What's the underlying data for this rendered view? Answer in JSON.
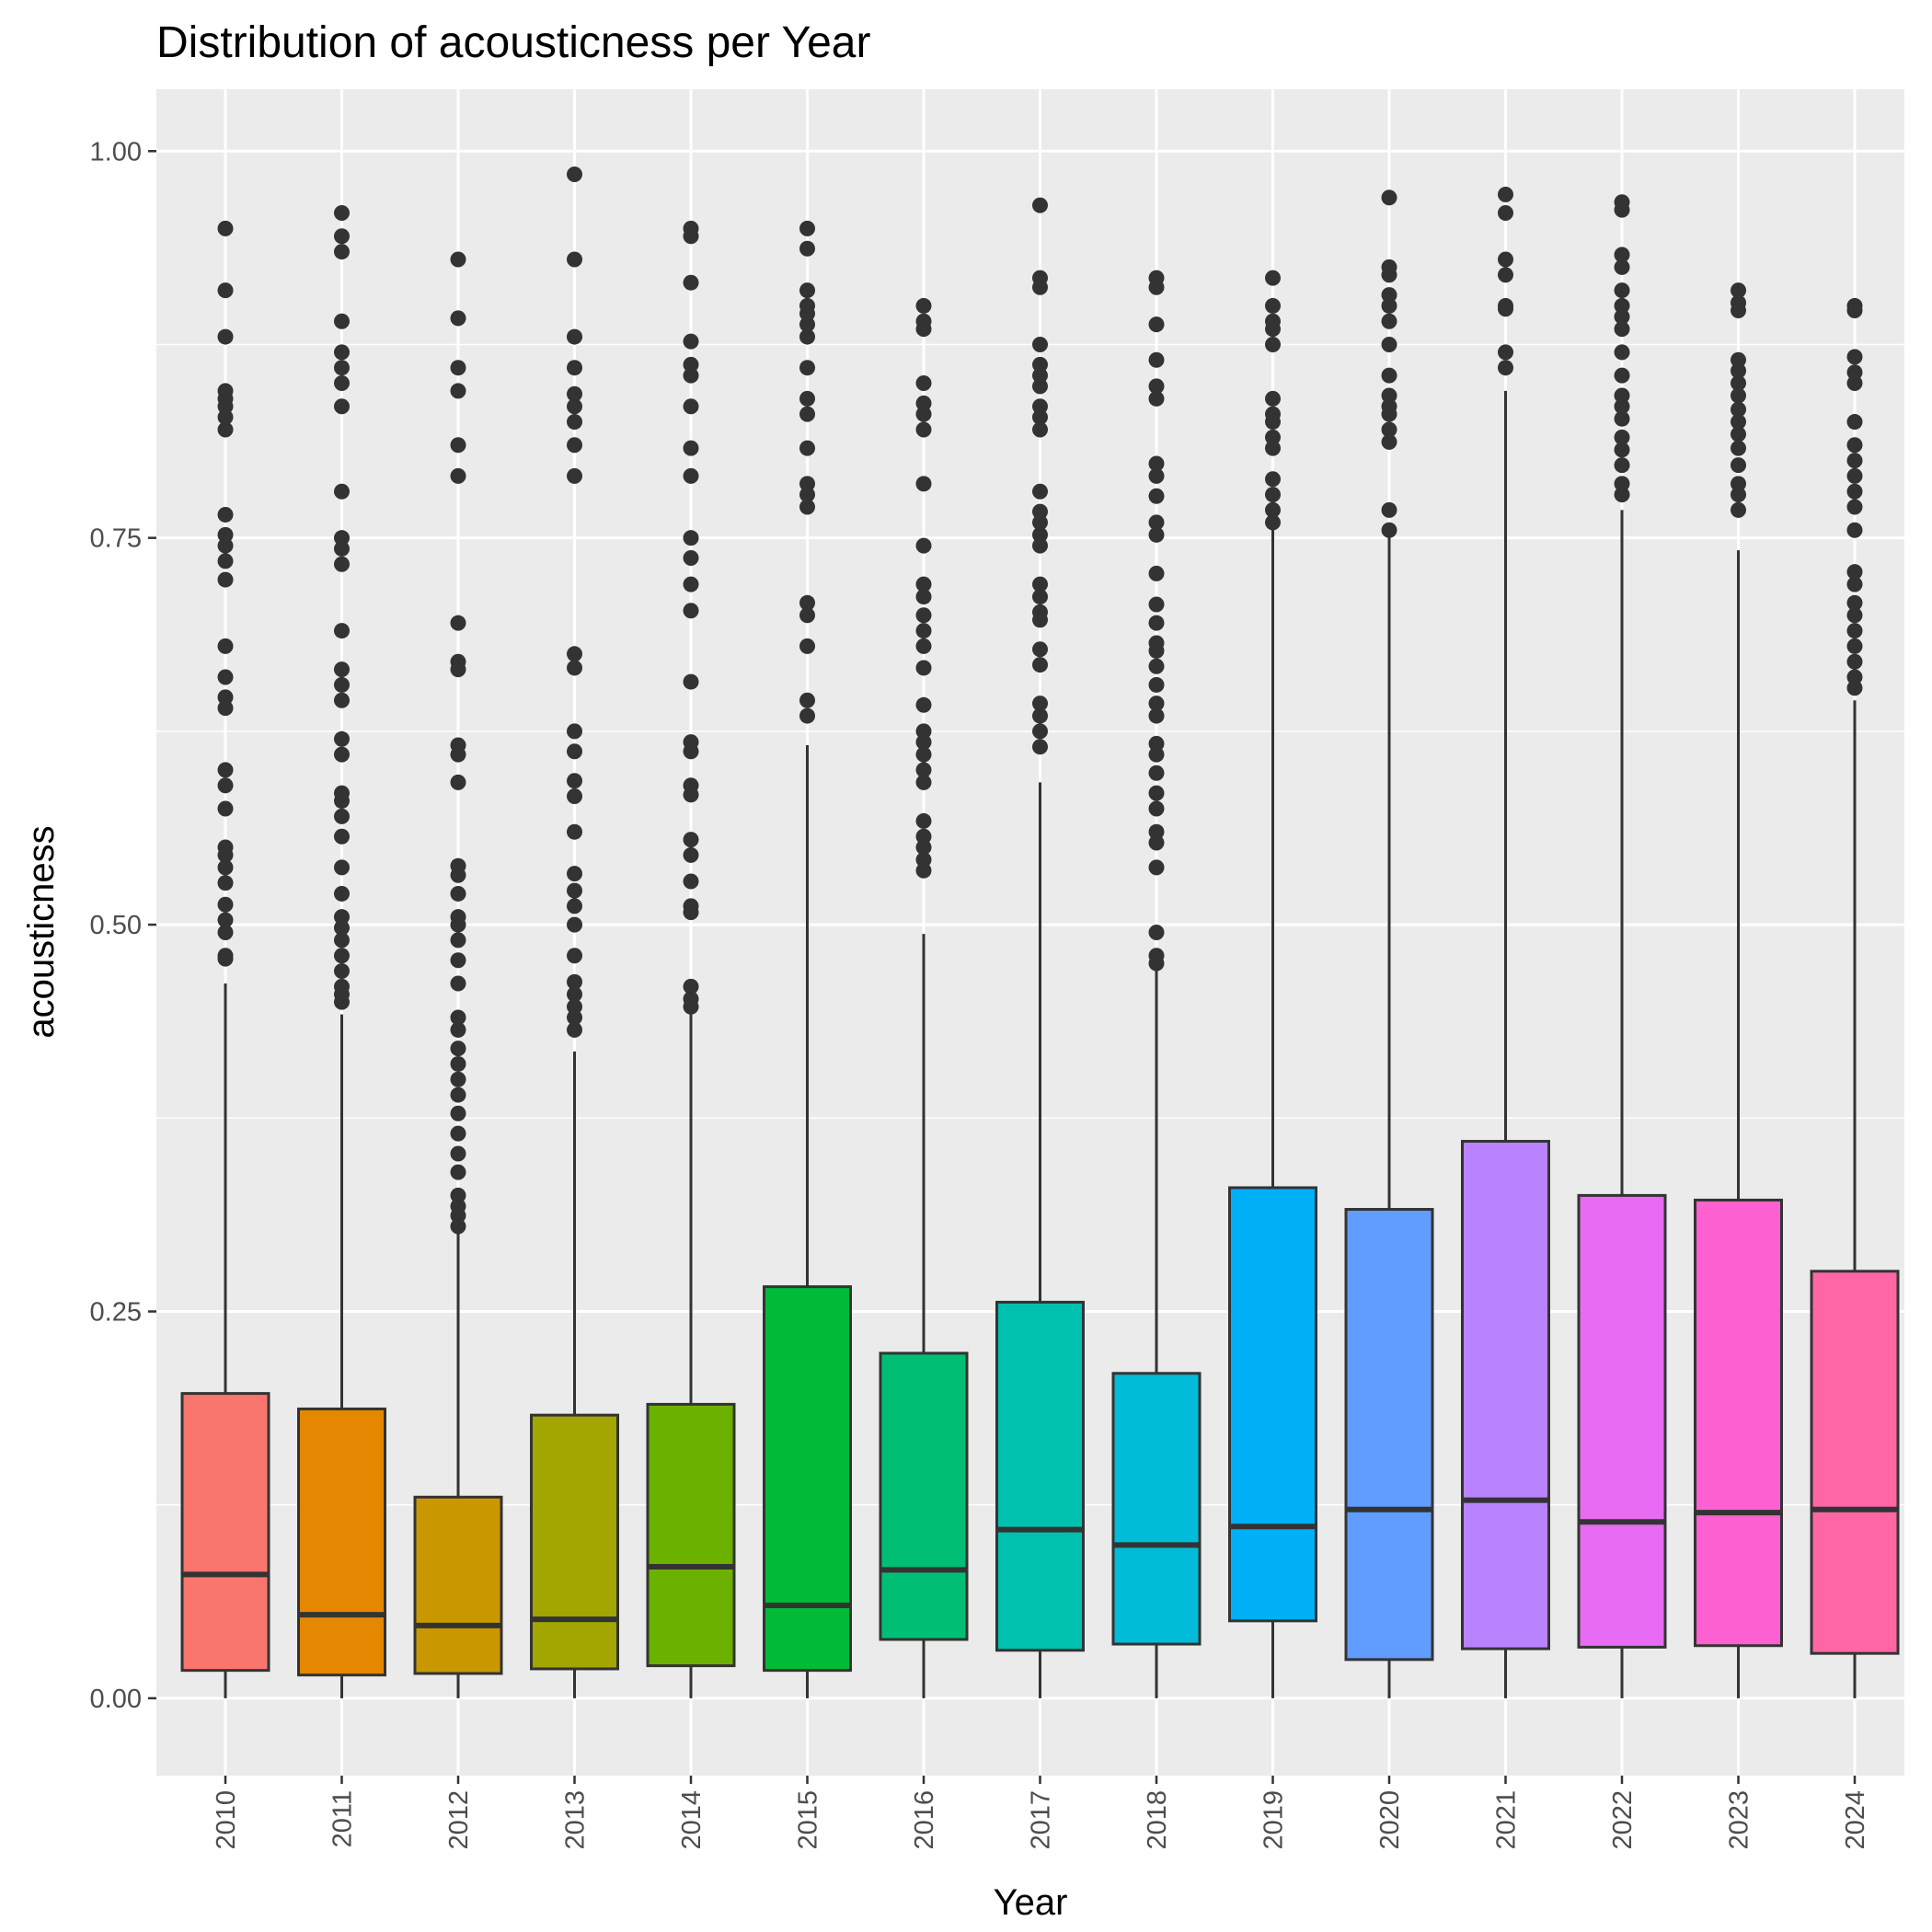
{
  "chart_data": {
    "type": "boxplot",
    "title": "Distribution of acousticness per Year",
    "xlabel": "Year",
    "ylabel": "acousticness",
    "ylim": [
      -0.05,
      1.04
    ],
    "y_ticks": [
      0.0,
      0.25,
      0.5,
      0.75,
      1.0
    ],
    "y_tick_labels": [
      "0.00",
      "0.25",
      "0.50",
      "0.75",
      "1.00"
    ],
    "grid": true,
    "legend": "none",
    "categories": [
      "2010",
      "2011",
      "2012",
      "2013",
      "2014",
      "2015",
      "2016",
      "2017",
      "2018",
      "2019",
      "2020",
      "2021",
      "2022",
      "2023",
      "2024"
    ],
    "boxes": [
      {
        "year": "2010",
        "color": "#F8766D",
        "lower_whisker": 0.0,
        "q1": 0.018,
        "median": 0.08,
        "q3": 0.197,
        "upper_whisker": 0.462,
        "outliers": [
          0.478,
          0.48,
          0.495,
          0.503,
          0.513,
          0.527,
          0.537,
          0.545,
          0.55,
          0.575,
          0.59,
          0.6,
          0.64,
          0.647,
          0.66,
          0.68,
          0.723,
          0.735,
          0.745,
          0.752,
          0.765,
          0.82,
          0.828,
          0.835,
          0.84,
          0.845,
          0.88,
          0.91,
          0.95
        ]
      },
      {
        "year": "2011",
        "color": "#E58700",
        "lower_whisker": 0.0,
        "q1": 0.015,
        "median": 0.054,
        "q3": 0.187,
        "upper_whisker": 0.442,
        "outliers": [
          0.45,
          0.455,
          0.46,
          0.47,
          0.48,
          0.49,
          0.498,
          0.505,
          0.52,
          0.537,
          0.557,
          0.57,
          0.58,
          0.585,
          0.61,
          0.62,
          0.645,
          0.655,
          0.665,
          0.69,
          0.733,
          0.743,
          0.75,
          0.78,
          0.835,
          0.85,
          0.86,
          0.87,
          0.89,
          0.935,
          0.945,
          0.96
        ]
      },
      {
        "year": "2012",
        "color": "#C99800",
        "lower_whisker": 0.0,
        "q1": 0.016,
        "median": 0.047,
        "q3": 0.13,
        "upper_whisker": 0.301,
        "outliers": [
          0.305,
          0.312,
          0.318,
          0.325,
          0.34,
          0.352,
          0.365,
          0.378,
          0.39,
          0.4,
          0.41,
          0.42,
          0.432,
          0.44,
          0.462,
          0.477,
          0.49,
          0.5,
          0.505,
          0.52,
          0.532,
          0.538,
          0.592,
          0.61,
          0.616,
          0.665,
          0.67,
          0.695,
          0.79,
          0.81,
          0.845,
          0.86,
          0.892,
          0.93
        ]
      },
      {
        "year": "2013",
        "color": "#A3A500",
        "lower_whisker": 0.0,
        "q1": 0.019,
        "median": 0.051,
        "q3": 0.183,
        "upper_whisker": 0.418,
        "outliers": [
          0.432,
          0.44,
          0.447,
          0.455,
          0.463,
          0.48,
          0.5,
          0.512,
          0.522,
          0.533,
          0.56,
          0.583,
          0.593,
          0.612,
          0.625,
          0.666,
          0.675,
          0.79,
          0.81,
          0.825,
          0.835,
          0.843,
          0.86,
          0.88,
          0.93,
          0.985
        ]
      },
      {
        "year": "2014",
        "color": "#6BB100",
        "lower_whisker": 0.0,
        "q1": 0.021,
        "median": 0.085,
        "q3": 0.19,
        "upper_whisker": 0.444,
        "outliers": [
          0.447,
          0.452,
          0.46,
          0.508,
          0.512,
          0.528,
          0.545,
          0.555,
          0.584,
          0.59,
          0.612,
          0.618,
          0.657,
          0.703,
          0.72,
          0.737,
          0.75,
          0.79,
          0.808,
          0.835,
          0.855,
          0.862,
          0.877,
          0.915,
          0.945,
          0.95
        ]
      },
      {
        "year": "2015",
        "color": "#00BA38",
        "lower_whisker": 0.0,
        "q1": 0.018,
        "median": 0.06,
        "q3": 0.266,
        "upper_whisker": 0.616,
        "outliers": [
          0.635,
          0.645,
          0.68,
          0.7,
          0.708,
          0.77,
          0.778,
          0.785,
          0.808,
          0.83,
          0.84,
          0.86,
          0.88,
          0.888,
          0.895,
          0.9,
          0.91,
          0.937,
          0.95
        ]
      },
      {
        "year": "2016",
        "color": "#00BF74",
        "lower_whisker": 0.0,
        "q1": 0.038,
        "median": 0.083,
        "q3": 0.223,
        "upper_whisker": 0.494,
        "outliers": [
          0.535,
          0.542,
          0.55,
          0.557,
          0.567,
          0.592,
          0.6,
          0.61,
          0.618,
          0.625,
          0.642,
          0.666,
          0.68,
          0.69,
          0.7,
          0.712,
          0.72,
          0.745,
          0.785,
          0.82,
          0.83,
          0.837,
          0.85,
          0.885,
          0.89,
          0.9
        ]
      },
      {
        "year": "2017",
        "color": "#00C0AF",
        "lower_whisker": 0.0,
        "q1": 0.031,
        "median": 0.109,
        "q3": 0.256,
        "upper_whisker": 0.592,
        "outliers": [
          0.615,
          0.625,
          0.635,
          0.643,
          0.668,
          0.678,
          0.697,
          0.702,
          0.712,
          0.72,
          0.745,
          0.752,
          0.76,
          0.767,
          0.78,
          0.82,
          0.828,
          0.835,
          0.848,
          0.855,
          0.862,
          0.875,
          0.912,
          0.918,
          0.965
        ]
      },
      {
        "year": "2018",
        "color": "#00BCD8",
        "lower_whisker": 0.0,
        "q1": 0.035,
        "median": 0.099,
        "q3": 0.21,
        "upper_whisker": 0.47,
        "outliers": [
          0.475,
          0.48,
          0.495,
          0.537,
          0.553,
          0.56,
          0.575,
          0.585,
          0.598,
          0.61,
          0.617,
          0.635,
          0.643,
          0.655,
          0.667,
          0.677,
          0.682,
          0.695,
          0.707,
          0.727,
          0.752,
          0.76,
          0.777,
          0.79,
          0.798,
          0.84,
          0.848,
          0.865,
          0.888,
          0.912,
          0.918
        ]
      },
      {
        "year": "2019",
        "color": "#00B0F6",
        "lower_whisker": 0.0,
        "q1": 0.05,
        "median": 0.111,
        "q3": 0.33,
        "upper_whisker": 0.76,
        "outliers": [
          0.76,
          0.768,
          0.778,
          0.788,
          0.808,
          0.815,
          0.825,
          0.83,
          0.84,
          0.875,
          0.885,
          0.89,
          0.9,
          0.918
        ]
      },
      {
        "year": "2020",
        "color": "#619CFF",
        "lower_whisker": 0.0,
        "q1": 0.025,
        "median": 0.122,
        "q3": 0.316,
        "upper_whisker": 0.755,
        "outliers": [
          0.755,
          0.768,
          0.812,
          0.82,
          0.83,
          0.835,
          0.842,
          0.855,
          0.875,
          0.89,
          0.9,
          0.907,
          0.92,
          0.925,
          0.97
        ]
      },
      {
        "year": "2021",
        "color": "#B983FF",
        "lower_whisker": 0.0,
        "q1": 0.032,
        "median": 0.128,
        "q3": 0.36,
        "upper_whisker": 0.845,
        "outliers": [
          0.86,
          0.87,
          0.898,
          0.9,
          0.92,
          0.93,
          0.96,
          0.972
        ]
      },
      {
        "year": "2022",
        "color": "#E76BF3",
        "lower_whisker": 0.0,
        "q1": 0.033,
        "median": 0.114,
        "q3": 0.325,
        "upper_whisker": 0.768,
        "outliers": [
          0.778,
          0.785,
          0.797,
          0.807,
          0.815,
          0.827,
          0.835,
          0.842,
          0.855,
          0.87,
          0.885,
          0.893,
          0.9,
          0.91,
          0.925,
          0.933,
          0.962,
          0.967
        ]
      },
      {
        "year": "2023",
        "color": "#FD61D1",
        "lower_whisker": 0.0,
        "q1": 0.034,
        "median": 0.12,
        "q3": 0.322,
        "upper_whisker": 0.742,
        "outliers": [
          0.768,
          0.778,
          0.785,
          0.797,
          0.808,
          0.817,
          0.825,
          0.833,
          0.842,
          0.85,
          0.858,
          0.865,
          0.897,
          0.902,
          0.91
        ]
      },
      {
        "year": "2024",
        "color": "#FF67A4",
        "lower_whisker": 0.0,
        "q1": 0.029,
        "median": 0.122,
        "q3": 0.276,
        "upper_whisker": 0.645,
        "outliers": [
          0.653,
          0.66,
          0.67,
          0.68,
          0.69,
          0.7,
          0.708,
          0.72,
          0.728,
          0.755,
          0.77,
          0.78,
          0.79,
          0.8,
          0.81,
          0.825,
          0.85,
          0.857,
          0.867,
          0.897,
          0.9
        ]
      }
    ]
  }
}
